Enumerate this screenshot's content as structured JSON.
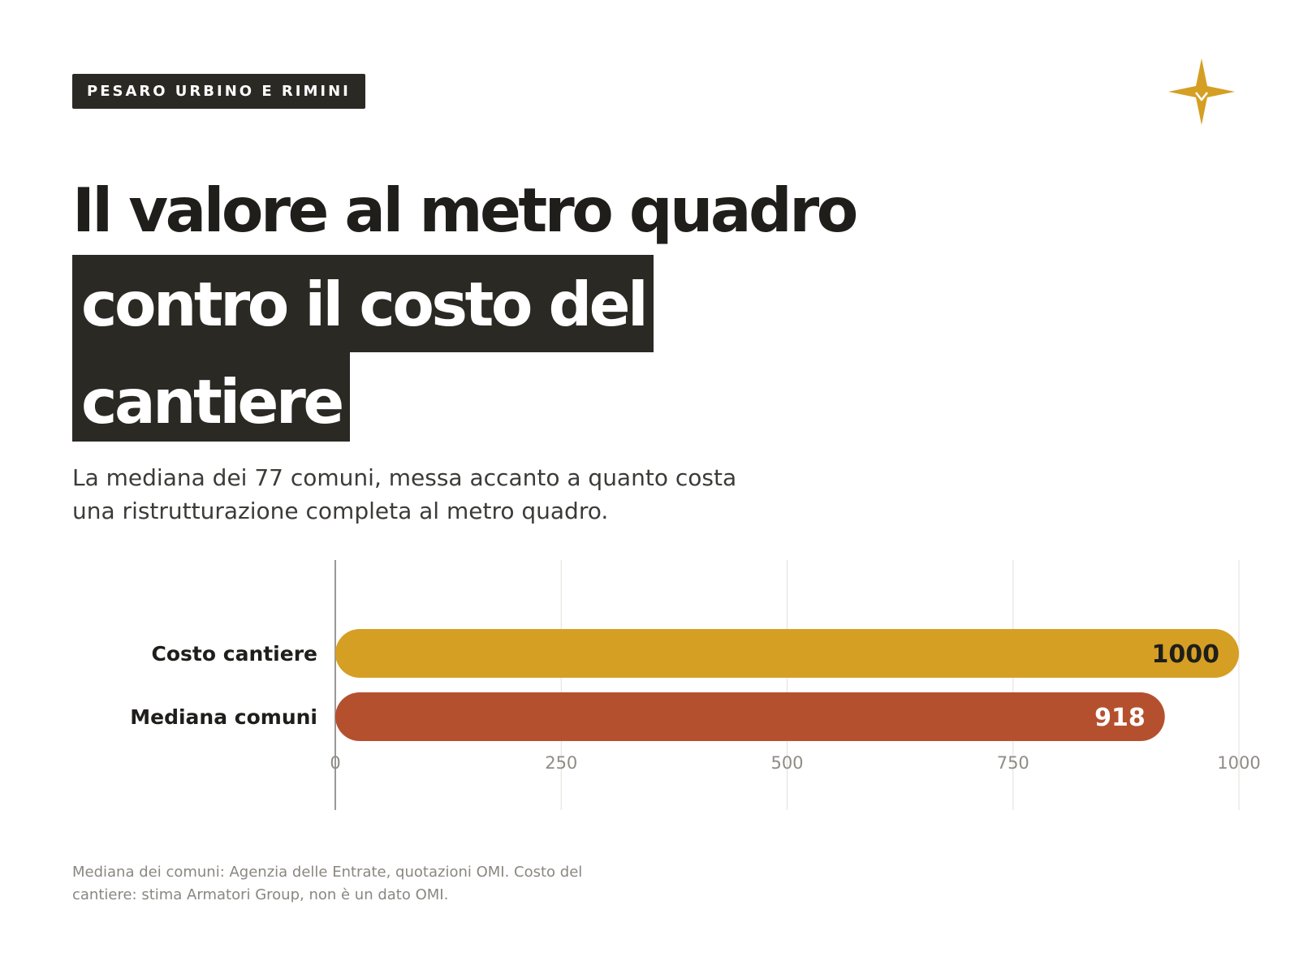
{
  "badge": "PESARO URBINO E RIMINI",
  "logo": {
    "icon": "compass-star-icon",
    "color": "#D59F24"
  },
  "title": {
    "line1": "Il valore al metro quadro",
    "line2": "contro il costo del",
    "line3": "cantiere"
  },
  "subtitle": "La mediana dei 77 comuni, messa accanto a quanto costa una ristrutturazione completa al metro quadro.",
  "source": "Mediana dei comuni: Agenzia delle Entrate, quotazioni OMI. Costo del cantiere: stima Armatori Group, non è un dato OMI.",
  "chart_data": {
    "type": "bar",
    "orientation": "horizontal",
    "categories": [
      "Costo cantiere",
      "Mediana comuni"
    ],
    "values": [
      1000,
      918
    ],
    "value_labels": [
      "1000",
      "918"
    ],
    "colors": [
      "#D59F24",
      "#B5502F"
    ],
    "value_label_colors": [
      "#1F1E1B",
      "#FFFFFF"
    ],
    "xlim": [
      0,
      1000
    ],
    "xticks": [
      0,
      250,
      500,
      750,
      1000
    ],
    "xtick_labels": [
      "0",
      "250",
      "500",
      "750",
      "1000"
    ],
    "grid": true,
    "legend": "none"
  }
}
